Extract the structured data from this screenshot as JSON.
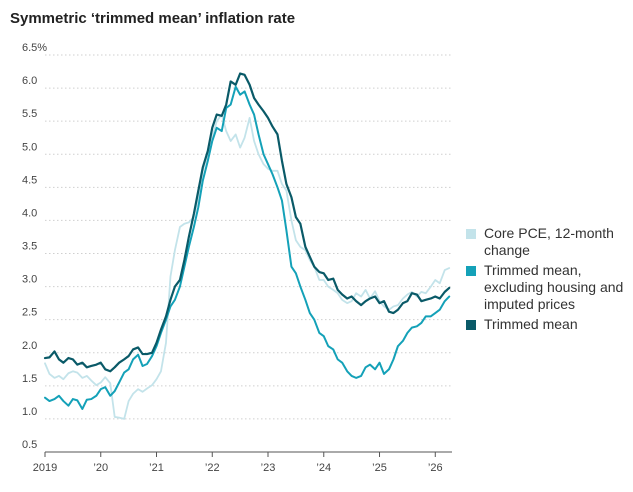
{
  "chart_data": {
    "type": "line",
    "title": "Symmetric ‘trimmed mean’ inflation rate",
    "ylim": [
      0.5,
      6.5
    ],
    "xlim": [
      2019.0,
      2026.3
    ],
    "yticks": [
      {
        "value": 6.5,
        "label": "6.5%"
      },
      {
        "value": 6.0,
        "label": "6.0"
      },
      {
        "value": 5.5,
        "label": "5.5"
      },
      {
        "value": 5.0,
        "label": "5.0"
      },
      {
        "value": 4.5,
        "label": "4.5"
      },
      {
        "value": 4.0,
        "label": "4.0"
      },
      {
        "value": 3.5,
        "label": "3.5"
      },
      {
        "value": 3.0,
        "label": "3.0"
      },
      {
        "value": 2.5,
        "label": "2.5"
      },
      {
        "value": 2.0,
        "label": "2.0"
      },
      {
        "value": 1.5,
        "label": "1.5"
      },
      {
        "value": 1.0,
        "label": "1.0"
      },
      {
        "value": 0.5,
        "label": "0.5"
      }
    ],
    "xticks": [
      {
        "value": 2019,
        "label": "2019"
      },
      {
        "value": 2020,
        "label": "’20"
      },
      {
        "value": 2021,
        "label": "’21"
      },
      {
        "value": 2022,
        "label": "’22"
      },
      {
        "value": 2023,
        "label": "’23"
      },
      {
        "value": 2024,
        "label": "’24"
      },
      {
        "value": 2025,
        "label": "’25"
      },
      {
        "value": 2026,
        "label": "’26"
      }
    ],
    "grid": "horizontal",
    "legend_position": "right",
    "series": [
      {
        "name": "Core PCE, 12-month change",
        "color": "#c3e3ea",
        "width": 1.8,
        "points": [
          [
            2019.0,
            1.84
          ],
          [
            2019.08,
            1.68
          ],
          [
            2019.17,
            1.62
          ],
          [
            2019.25,
            1.65
          ],
          [
            2019.33,
            1.6
          ],
          [
            2019.42,
            1.69
          ],
          [
            2019.5,
            1.72
          ],
          [
            2019.58,
            1.7
          ],
          [
            2019.67,
            1.62
          ],
          [
            2019.75,
            1.65
          ],
          [
            2019.83,
            1.58
          ],
          [
            2019.92,
            1.51
          ],
          [
            2020.0,
            1.55
          ],
          [
            2020.08,
            1.63
          ],
          [
            2020.17,
            1.54
          ],
          [
            2020.25,
            1.03
          ],
          [
            2020.33,
            1.02
          ],
          [
            2020.42,
            1.0
          ],
          [
            2020.5,
            1.27
          ],
          [
            2020.58,
            1.38
          ],
          [
            2020.67,
            1.45
          ],
          [
            2020.75,
            1.41
          ],
          [
            2020.83,
            1.46
          ],
          [
            2020.92,
            1.51
          ],
          [
            2021.0,
            1.6
          ],
          [
            2021.08,
            1.72
          ],
          [
            2021.17,
            2.15
          ],
          [
            2021.25,
            3.15
          ],
          [
            2021.33,
            3.55
          ],
          [
            2021.42,
            3.9
          ],
          [
            2021.5,
            3.95
          ],
          [
            2021.58,
            3.97
          ],
          [
            2021.67,
            4.05
          ],
          [
            2021.75,
            4.35
          ],
          [
            2021.83,
            4.75
          ],
          [
            2021.92,
            5.0
          ],
          [
            2022.0,
            5.25
          ],
          [
            2022.08,
            5.5
          ],
          [
            2022.17,
            5.6
          ],
          [
            2022.25,
            5.35
          ],
          [
            2022.33,
            5.2
          ],
          [
            2022.42,
            5.3
          ],
          [
            2022.5,
            5.1
          ],
          [
            2022.58,
            5.25
          ],
          [
            2022.67,
            5.55
          ],
          [
            2022.75,
            5.2
          ],
          [
            2022.83,
            5.0
          ],
          [
            2022.92,
            4.85
          ],
          [
            2023.0,
            4.78
          ],
          [
            2023.08,
            4.75
          ],
          [
            2023.17,
            4.75
          ],
          [
            2023.25,
            4.55
          ],
          [
            2023.33,
            4.45
          ],
          [
            2023.42,
            4.0
          ],
          [
            2023.5,
            3.7
          ],
          [
            2023.58,
            3.6
          ],
          [
            2023.67,
            3.55
          ],
          [
            2023.75,
            3.4
          ],
          [
            2023.83,
            3.3
          ],
          [
            2023.92,
            3.1
          ],
          [
            2024.0,
            3.1
          ],
          [
            2024.08,
            3.0
          ],
          [
            2024.17,
            2.95
          ],
          [
            2024.25,
            2.9
          ],
          [
            2024.33,
            2.8
          ],
          [
            2024.42,
            2.75
          ],
          [
            2024.5,
            2.78
          ],
          [
            2024.58,
            2.9
          ],
          [
            2024.67,
            2.85
          ],
          [
            2024.75,
            2.95
          ],
          [
            2024.83,
            2.82
          ],
          [
            2024.92,
            2.93
          ],
          [
            2025.0,
            2.78
          ],
          [
            2025.08,
            2.7
          ],
          [
            2025.17,
            2.65
          ],
          [
            2025.25,
            2.7
          ],
          [
            2025.33,
            2.72
          ],
          [
            2025.42,
            2.82
          ],
          [
            2025.5,
            2.88
          ],
          [
            2025.58,
            2.92
          ],
          [
            2025.67,
            2.85
          ],
          [
            2025.75,
            2.92
          ],
          [
            2025.83,
            2.9
          ],
          [
            2025.92,
            3.0
          ],
          [
            2026.0,
            3.1
          ],
          [
            2026.08,
            3.05
          ],
          [
            2026.17,
            3.25
          ],
          [
            2026.25,
            3.28
          ]
        ]
      },
      {
        "name": "Trimmed mean, excluding housing and imputed prices",
        "color": "#14a1b8",
        "width": 2,
        "points": [
          [
            2019.0,
            1.32
          ],
          [
            2019.08,
            1.27
          ],
          [
            2019.17,
            1.3
          ],
          [
            2019.25,
            1.35
          ],
          [
            2019.33,
            1.27
          ],
          [
            2019.42,
            1.2
          ],
          [
            2019.5,
            1.3
          ],
          [
            2019.58,
            1.28
          ],
          [
            2019.67,
            1.15
          ],
          [
            2019.75,
            1.29
          ],
          [
            2019.83,
            1.3
          ],
          [
            2019.92,
            1.35
          ],
          [
            2020.0,
            1.45
          ],
          [
            2020.08,
            1.48
          ],
          [
            2020.17,
            1.35
          ],
          [
            2020.25,
            1.42
          ],
          [
            2020.33,
            1.55
          ],
          [
            2020.42,
            1.7
          ],
          [
            2020.5,
            1.75
          ],
          [
            2020.58,
            1.9
          ],
          [
            2020.67,
            1.97
          ],
          [
            2020.75,
            1.8
          ],
          [
            2020.83,
            1.83
          ],
          [
            2020.92,
            1.95
          ],
          [
            2021.0,
            2.1
          ],
          [
            2021.08,
            2.3
          ],
          [
            2021.17,
            2.5
          ],
          [
            2021.25,
            2.7
          ],
          [
            2021.33,
            2.8
          ],
          [
            2021.42,
            3.0
          ],
          [
            2021.5,
            3.3
          ],
          [
            2021.58,
            3.6
          ],
          [
            2021.67,
            3.9
          ],
          [
            2021.75,
            4.2
          ],
          [
            2021.83,
            4.6
          ],
          [
            2021.92,
            4.9
          ],
          [
            2022.0,
            5.2
          ],
          [
            2022.08,
            5.4
          ],
          [
            2022.17,
            5.35
          ],
          [
            2022.25,
            5.7
          ],
          [
            2022.33,
            5.75
          ],
          [
            2022.42,
            6.02
          ],
          [
            2022.5,
            5.9
          ],
          [
            2022.58,
            5.95
          ],
          [
            2022.67,
            5.75
          ],
          [
            2022.75,
            5.6
          ],
          [
            2022.83,
            5.3
          ],
          [
            2022.92,
            5.0
          ],
          [
            2023.0,
            4.85
          ],
          [
            2023.08,
            4.7
          ],
          [
            2023.17,
            4.5
          ],
          [
            2023.25,
            4.3
          ],
          [
            2023.33,
            3.85
          ],
          [
            2023.42,
            3.3
          ],
          [
            2023.5,
            3.2
          ],
          [
            2023.58,
            3.0
          ],
          [
            2023.67,
            2.8
          ],
          [
            2023.75,
            2.6
          ],
          [
            2023.83,
            2.5
          ],
          [
            2023.92,
            2.3
          ],
          [
            2024.0,
            2.25
          ],
          [
            2024.08,
            2.1
          ],
          [
            2024.17,
            2.05
          ],
          [
            2024.25,
            1.9
          ],
          [
            2024.33,
            1.85
          ],
          [
            2024.42,
            1.72
          ],
          [
            2024.5,
            1.65
          ],
          [
            2024.58,
            1.62
          ],
          [
            2024.67,
            1.65
          ],
          [
            2024.75,
            1.78
          ],
          [
            2024.83,
            1.82
          ],
          [
            2024.92,
            1.75
          ],
          [
            2025.0,
            1.85
          ],
          [
            2025.08,
            1.68
          ],
          [
            2025.17,
            1.75
          ],
          [
            2025.25,
            1.9
          ],
          [
            2025.33,
            2.1
          ],
          [
            2025.42,
            2.18
          ],
          [
            2025.5,
            2.3
          ],
          [
            2025.58,
            2.38
          ],
          [
            2025.67,
            2.4
          ],
          [
            2025.75,
            2.45
          ],
          [
            2025.83,
            2.55
          ],
          [
            2025.92,
            2.55
          ],
          [
            2026.0,
            2.6
          ],
          [
            2026.08,
            2.65
          ],
          [
            2026.17,
            2.78
          ],
          [
            2026.25,
            2.85
          ]
        ]
      },
      {
        "name": "Trimmed mean",
        "color": "#0a5a68",
        "width": 2.2,
        "points": [
          [
            2019.0,
            1.92
          ],
          [
            2019.08,
            1.93
          ],
          [
            2019.17,
            2.02
          ],
          [
            2019.25,
            1.9
          ],
          [
            2019.33,
            1.85
          ],
          [
            2019.42,
            1.92
          ],
          [
            2019.5,
            1.9
          ],
          [
            2019.58,
            1.82
          ],
          [
            2019.67,
            1.85
          ],
          [
            2019.75,
            1.78
          ],
          [
            2019.83,
            1.8
          ],
          [
            2019.92,
            1.82
          ],
          [
            2020.0,
            1.85
          ],
          [
            2020.08,
            1.75
          ],
          [
            2020.17,
            1.72
          ],
          [
            2020.25,
            1.78
          ],
          [
            2020.33,
            1.85
          ],
          [
            2020.42,
            1.9
          ],
          [
            2020.5,
            1.95
          ],
          [
            2020.58,
            2.05
          ],
          [
            2020.67,
            2.08
          ],
          [
            2020.75,
            1.98
          ],
          [
            2020.83,
            1.98
          ],
          [
            2020.92,
            2.0
          ],
          [
            2021.0,
            2.15
          ],
          [
            2021.08,
            2.35
          ],
          [
            2021.17,
            2.55
          ],
          [
            2021.25,
            2.8
          ],
          [
            2021.33,
            3.0
          ],
          [
            2021.42,
            3.1
          ],
          [
            2021.5,
            3.4
          ],
          [
            2021.58,
            3.75
          ],
          [
            2021.67,
            4.1
          ],
          [
            2021.75,
            4.45
          ],
          [
            2021.83,
            4.8
          ],
          [
            2021.92,
            5.05
          ],
          [
            2022.0,
            5.4
          ],
          [
            2022.08,
            5.6
          ],
          [
            2022.17,
            5.58
          ],
          [
            2022.25,
            5.75
          ],
          [
            2022.33,
            6.1
          ],
          [
            2022.42,
            6.05
          ],
          [
            2022.5,
            6.22
          ],
          [
            2022.58,
            6.2
          ],
          [
            2022.67,
            6.05
          ],
          [
            2022.75,
            5.85
          ],
          [
            2022.83,
            5.75
          ],
          [
            2022.92,
            5.65
          ],
          [
            2023.0,
            5.55
          ],
          [
            2023.08,
            5.42
          ],
          [
            2023.17,
            5.3
          ],
          [
            2023.25,
            4.9
          ],
          [
            2023.33,
            4.55
          ],
          [
            2023.42,
            4.35
          ],
          [
            2023.5,
            4.05
          ],
          [
            2023.58,
            3.95
          ],
          [
            2023.67,
            3.6
          ],
          [
            2023.75,
            3.45
          ],
          [
            2023.83,
            3.3
          ],
          [
            2023.92,
            3.22
          ],
          [
            2024.0,
            3.2
          ],
          [
            2024.08,
            3.1
          ],
          [
            2024.17,
            3.12
          ],
          [
            2024.25,
            2.95
          ],
          [
            2024.33,
            2.88
          ],
          [
            2024.42,
            2.82
          ],
          [
            2024.5,
            2.85
          ],
          [
            2024.58,
            2.78
          ],
          [
            2024.67,
            2.72
          ],
          [
            2024.75,
            2.78
          ],
          [
            2024.83,
            2.82
          ],
          [
            2024.92,
            2.85
          ],
          [
            2025.0,
            2.75
          ],
          [
            2025.08,
            2.78
          ],
          [
            2025.17,
            2.62
          ],
          [
            2025.25,
            2.6
          ],
          [
            2025.33,
            2.65
          ],
          [
            2025.42,
            2.75
          ],
          [
            2025.5,
            2.78
          ],
          [
            2025.58,
            2.9
          ],
          [
            2025.67,
            2.88
          ],
          [
            2025.75,
            2.78
          ],
          [
            2025.83,
            2.8
          ],
          [
            2025.92,
            2.82
          ],
          [
            2026.0,
            2.85
          ],
          [
            2026.08,
            2.82
          ],
          [
            2026.17,
            2.92
          ],
          [
            2026.25,
            2.98
          ]
        ]
      }
    ],
    "legend": [
      {
        "label": "Core PCE, 12-month change",
        "color": "#c3e3ea"
      },
      {
        "label": "Trimmed mean, excluding housing and imputed prices",
        "color": "#14a1b8"
      },
      {
        "label": "Trimmed mean",
        "color": "#0a5a68"
      }
    ]
  }
}
